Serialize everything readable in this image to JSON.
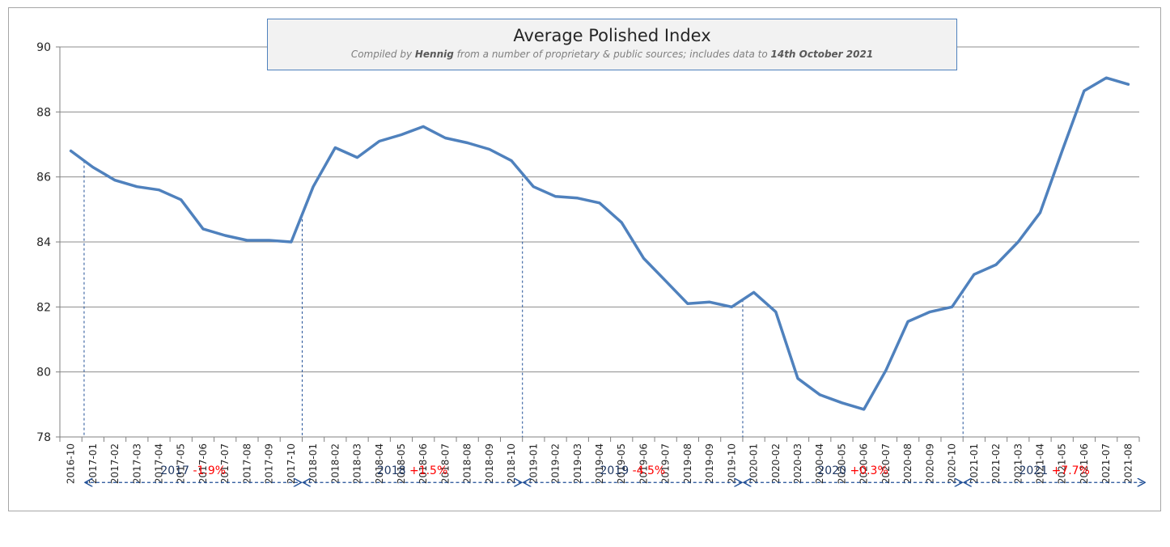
{
  "chart_data": {
    "type": "line",
    "title": "Average Polished Index",
    "subtitle": {
      "prefix": "Compiled by ",
      "author": "Hennig",
      "middle": " from a number of proprietary & public sources; includes data to ",
      "date": "14th October 2021"
    },
    "xlabel": "",
    "ylabel": "",
    "ylim": [
      78,
      90
    ],
    "yticks": [
      78,
      80,
      82,
      84,
      86,
      88,
      90
    ],
    "grid": true,
    "line_color": "#4f81bd",
    "categories": [
      "2016-10",
      "2017-01",
      "2017-02",
      "2017-03",
      "2017-04",
      "2017-05",
      "2017-06",
      "2017-07",
      "2017-08",
      "2017-09",
      "2017-10",
      "2018-01",
      "2018-02",
      "2018-03",
      "2018-04",
      "2018-05",
      "2018-06",
      "2018-07",
      "2018-08",
      "2018-09",
      "2018-10",
      "2019-01",
      "2019-02",
      "2019-03",
      "2019-04",
      "2019-05",
      "2019-06",
      "2019-07",
      "2019-08",
      "2019-09",
      "2019-10",
      "2020-01",
      "2020-02",
      "2020-03",
      "2020-04",
      "2020-05",
      "2020-06",
      "2020-07",
      "2020-08",
      "2020-09",
      "2020-10",
      "2021-01",
      "2021-02",
      "2021-03",
      "2021-04",
      "2021-05",
      "2021-06",
      "2021-07",
      "2021-08"
    ],
    "values": [
      86.8,
      86.3,
      85.9,
      85.7,
      85.6,
      85.3,
      84.4,
      84.2,
      84.05,
      84.05,
      84.0,
      85.7,
      86.9,
      86.6,
      87.1,
      87.3,
      87.55,
      87.2,
      87.05,
      86.85,
      86.5,
      85.7,
      85.4,
      85.35,
      85.2,
      84.6,
      83.5,
      82.8,
      82.1,
      82.15,
      82.0,
      82.45,
      81.85,
      79.8,
      79.3,
      79.05,
      78.85,
      80.05,
      81.55,
      81.85,
      82.0,
      83.0,
      83.3,
      84.0,
      84.9,
      86.8,
      88.65,
      89.05,
      88.85
    ],
    "annotations": [
      {
        "year": "2017",
        "change": "-1.9%",
        "from_index": 0.6,
        "to_index": 10.5
      },
      {
        "year": "2018",
        "change": "+1.5%",
        "from_index": 10.5,
        "to_index": 20.5
      },
      {
        "year": "2019",
        "change": "-4.5%",
        "from_index": 20.5,
        "to_index": 30.5
      },
      {
        "year": "2020",
        "change": "+0.3%",
        "from_index": 30.5,
        "to_index": 40.5
      },
      {
        "year": "2021",
        "change": "+7.7%",
        "from_index": 40.5,
        "to_index": 48.8
      }
    ],
    "annotation_divider_indices": [
      0.6,
      10.5,
      20.5,
      30.5,
      40.5
    ],
    "annotation_level": 76.6,
    "annotation_year_color": "#1f3864",
    "annotation_change_color": "#ff0000",
    "arrow_color": "#1f4e96"
  }
}
